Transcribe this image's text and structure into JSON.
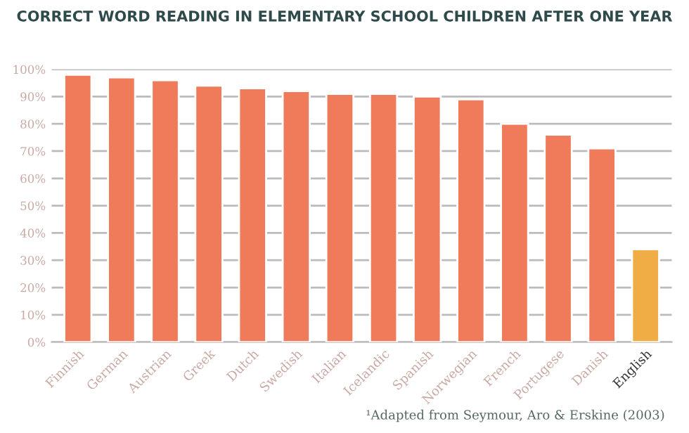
{
  "chart_data": {
    "type": "bar",
    "title": "CORRECT WORD READING IN ELEMENTARY SCHOOL CHILDREN AFTER ONE YEAR",
    "categories": [
      "Finnish",
      "German",
      "Austrian",
      "Greek",
      "Dutch",
      "Swedish",
      "Italian",
      "Icelandic",
      "Spanish",
      "Norwegian",
      "French",
      "Portugese",
      "Danish",
      "English"
    ],
    "values": [
      98,
      97,
      96,
      94,
      93,
      92,
      91,
      91,
      90,
      89,
      80,
      76,
      71,
      34
    ],
    "colors": [
      "#ef7b5b",
      "#ef7b5b",
      "#ef7b5b",
      "#ef7b5b",
      "#ef7b5b",
      "#ef7b5b",
      "#ef7b5b",
      "#ef7b5b",
      "#ef7b5b",
      "#ef7b5b",
      "#ef7b5b",
      "#ef7b5b",
      "#ef7b5b",
      "#f0ad46"
    ],
    "ylim": [
      0,
      100
    ],
    "yticks": [
      {
        "value": 0,
        "label": "0%"
      },
      {
        "value": 10,
        "label": "10%"
      },
      {
        "value": 20,
        "label": "20%"
      },
      {
        "value": 30,
        "label": "30%"
      },
      {
        "value": 40,
        "label": "40%"
      },
      {
        "value": 50,
        "label": "50%"
      },
      {
        "value": 60,
        "label": "60%"
      },
      {
        "value": 70,
        "label": "70%"
      },
      {
        "value": 80,
        "label": "80%"
      },
      {
        "value": 90,
        "label": "90%"
      },
      {
        "value": 100,
        "label": "100%"
      }
    ],
    "grid": "y",
    "annotations": [
      "¹Adapted from Seymour, Aro & Erskine (2003)"
    ]
  }
}
